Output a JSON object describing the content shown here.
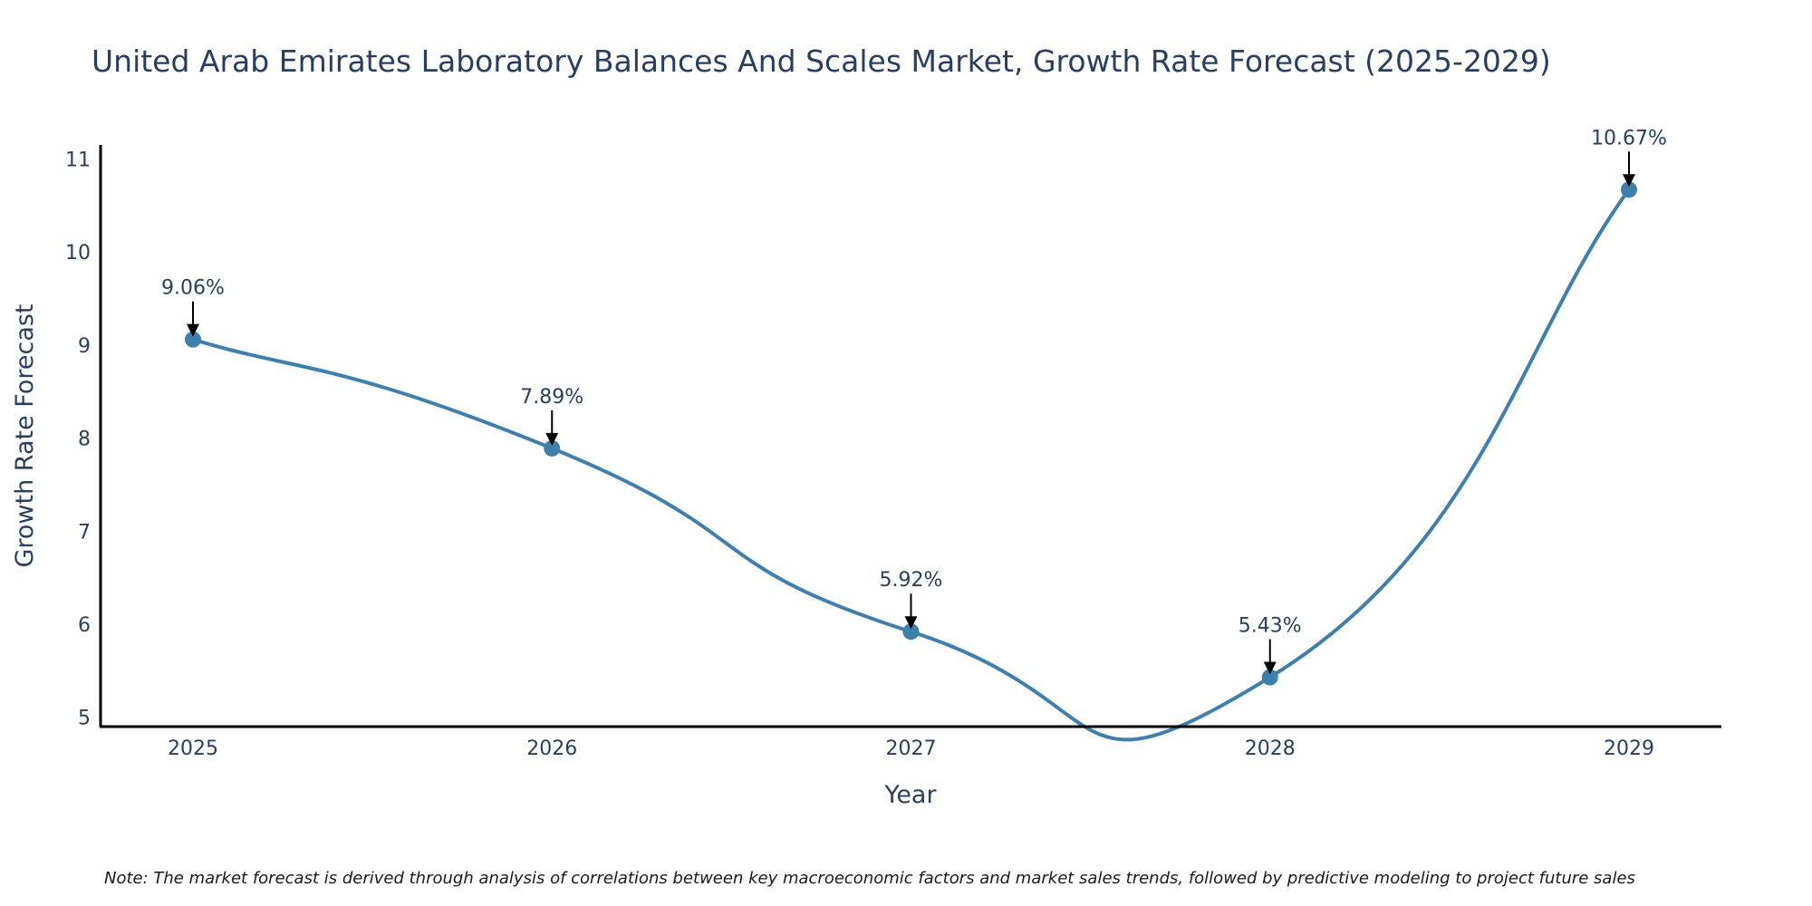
{
  "chart_data": {
    "type": "line",
    "title": "United Arab Emirates Laboratory Balances And Scales Market, Growth Rate Forecast (2025-2029)",
    "xlabel": "Year",
    "ylabel": "Growth Rate Forecast",
    "categories": [
      "2025",
      "2026",
      "2027",
      "2028",
      "2029"
    ],
    "series": [
      {
        "name": "Growth Rate Forecast",
        "values": [
          9.06,
          7.89,
          5.92,
          5.43,
          10.67
        ],
        "labels": [
          "9.06%",
          "7.89%",
          "5.92%",
          "5.43%",
          "10.67%"
        ]
      }
    ],
    "y_ticks": [
      "5",
      "6",
      "7",
      "8",
      "9",
      "10",
      "11"
    ],
    "ylim": [
      4.9,
      11.15
    ],
    "grid": false,
    "legend": "none",
    "note": "Note: The market forecast is derived through analysis of correlations between key macroeconomic factors and market sales trends, followed by predictive modeling to project future sales"
  },
  "colors": {
    "line": "#3f7fad",
    "marker": "#3f7fad",
    "text": "#2a3f5f",
    "axis": "#000000",
    "arrow": "#000000"
  }
}
